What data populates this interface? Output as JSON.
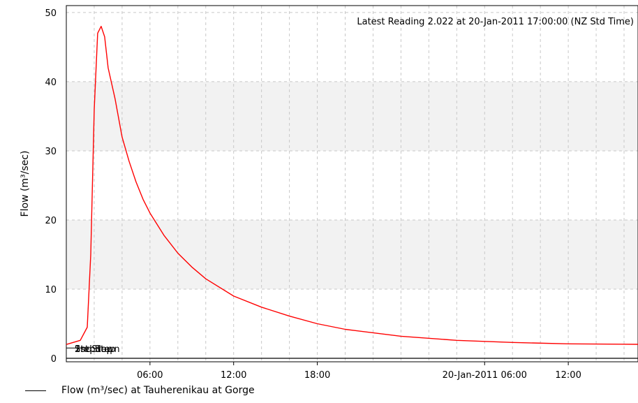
{
  "chart_data": {
    "type": "line",
    "annotation": "Latest Reading 2.022 at 20-Jan-2011 17:00:00 (NZ Std Time)",
    "ylabel": "Flow (m³/sec)",
    "ylim": [
      -0.5,
      51
    ],
    "yticks": [
      0,
      10,
      20,
      30,
      40,
      50
    ],
    "xlim": [
      "2011-01-19T00:00",
      "2011-01-20T17:00"
    ],
    "xticks": [
      {
        "x": "2011-01-19T06:00",
        "label": "06:00"
      },
      {
        "x": "2011-01-19T12:00",
        "label": "12:00"
      },
      {
        "x": "2011-01-19T18:00",
        "label": "18:00"
      },
      {
        "x": "2011-01-20T06:00",
        "label": "20-Jan-2011 06:00"
      },
      {
        "x": "2011-01-20T12:00",
        "label": "12:00"
      }
    ],
    "threshold_labels": [
      "1st Step",
      "2nd Step",
      "Stepdown"
    ],
    "threshold_value": 1.5,
    "grid": true,
    "bands": [
      [
        10,
        20
      ],
      [
        30,
        40
      ]
    ],
    "series": [
      {
        "name": "",
        "color": "#ff0000",
        "x": [
          "2011-01-19T00:00",
          "2011-01-19T01:00",
          "2011-01-19T01:30",
          "2011-01-19T01:45",
          "2011-01-19T02:00",
          "2011-01-19T02:15",
          "2011-01-19T02:30",
          "2011-01-19T02:45",
          "2011-01-19T03:00",
          "2011-01-19T03:30",
          "2011-01-19T04:00",
          "2011-01-19T04:30",
          "2011-01-19T05:00",
          "2011-01-19T05:30",
          "2011-01-19T06:00",
          "2011-01-19T07:00",
          "2011-01-19T08:00",
          "2011-01-19T09:00",
          "2011-01-19T10:00",
          "2011-01-19T12:00",
          "2011-01-19T14:00",
          "2011-01-19T16:00",
          "2011-01-19T18:00",
          "2011-01-19T20:00",
          "2011-01-20T00:00",
          "2011-01-20T04:00",
          "2011-01-20T08:00",
          "2011-01-20T12:00",
          "2011-01-20T17:00"
        ],
        "values": [
          2.0,
          2.6,
          4.5,
          15.0,
          36.0,
          47.0,
          48.0,
          46.5,
          42.0,
          37.5,
          32.0,
          28.5,
          25.5,
          23.0,
          21.0,
          17.8,
          15.2,
          13.2,
          11.5,
          9.0,
          7.4,
          6.1,
          5.0,
          4.2,
          3.2,
          2.6,
          2.3,
          2.1,
          2.022
        ]
      },
      {
        "name": "Flow (m³/sec) at Tauherenikau at Gorge",
        "color": "#000000",
        "x": [
          "2011-01-19T00:00",
          "2011-01-20T17:00"
        ],
        "values": [
          0,
          0
        ]
      }
    ]
  },
  "legend": {
    "label": "Flow (m³/sec) at Tauherenikau at Gorge"
  }
}
